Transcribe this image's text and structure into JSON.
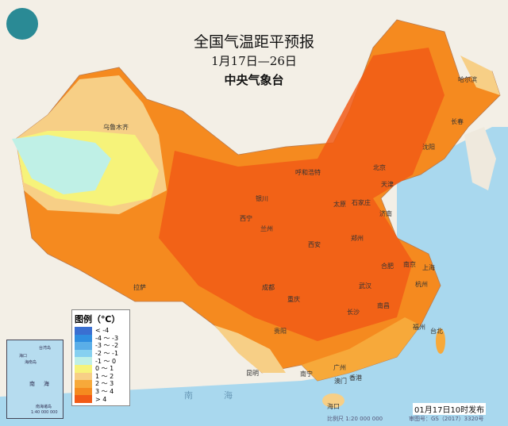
{
  "title": "全国气温距平预报",
  "period": "1月17日—26日",
  "issuer": "中央气象台",
  "logo": "cma-logo",
  "legend": {
    "title": "图例（℃）",
    "items": [
      {
        "label": "< -4",
        "color": "#3a6fd1"
      },
      {
        "label": "-4 ～ -3",
        "color": "#2f8ee0"
      },
      {
        "label": "-3 ～ -2",
        "color": "#5aaee8"
      },
      {
        "label": "-2 ～ -1",
        "color": "#86d0f0"
      },
      {
        "label": "-1 ～ 0",
        "color": "#bff0e6"
      },
      {
        "label": "0 ～ 1",
        "color": "#f6f37a"
      },
      {
        "label": "1 ～ 2",
        "color": "#f7cf86"
      },
      {
        "label": "2 ～ 3",
        "color": "#f7a93a"
      },
      {
        "label": "3 ～ 4",
        "color": "#f58a1f"
      },
      {
        "label": "> 4",
        "color": "#f15a16"
      }
    ]
  },
  "cities": [
    "乌鲁木齐",
    "哈尔滨",
    "长春",
    "沈阳",
    "呼和浩特",
    "北京",
    "天津",
    "石家庄",
    "太原",
    "银川",
    "济南",
    "西宁",
    "兰州",
    "郑州",
    "西安",
    "合肥",
    "南京",
    "上海",
    "杭州",
    "拉萨",
    "成都",
    "武汉",
    "重庆",
    "长沙",
    "南昌",
    "贵阳",
    "福州",
    "台北",
    "昆明",
    "南宁",
    "广州",
    "香港",
    "澳门",
    "海口"
  ],
  "inset": {
    "labels": [
      "台湾岛",
      "海口",
      "海南岛",
      "南",
      "海",
      "南海诸岛"
    ],
    "scale": "1:40 000 000"
  },
  "sea_labels": [
    "南",
    "海"
  ],
  "issued": "01月17日10时发布",
  "scale": "比例尺 1:20 000 000",
  "approval": "审图号：GS（2017）3320号"
}
